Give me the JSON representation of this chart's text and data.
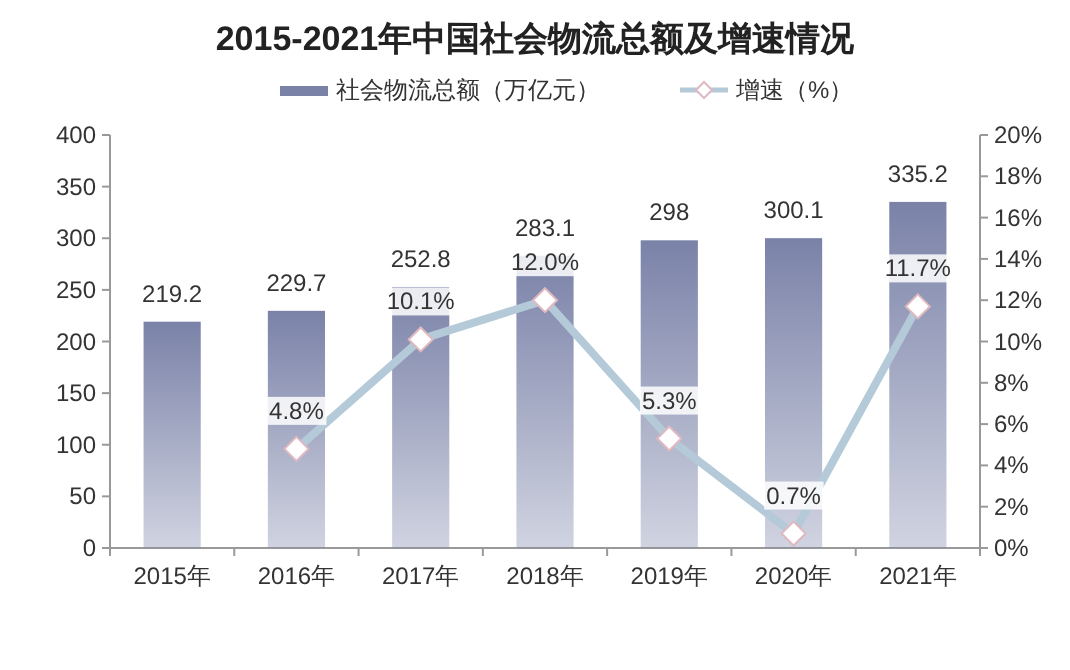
{
  "chart_data": {
    "type": "bar",
    "title": "2015-2021年中国社会物流总额及增速情况",
    "categories": [
      "2015年",
      "2016年",
      "2017年",
      "2018年",
      "2019年",
      "2020年",
      "2021年"
    ],
    "series": [
      {
        "name": "社会物流总额（万亿元）",
        "color": "#7a82a8",
        "values": [
          219.2,
          229.7,
          252.8,
          283.1,
          298,
          300.1,
          335.2
        ],
        "value_labels": [
          "219.2",
          "229.7",
          "252.8",
          "283.1",
          "298",
          "300.1",
          "335.2"
        ]
      },
      {
        "name": "增速（%）",
        "type": "line",
        "axis": "y2",
        "color": "#b4cad8",
        "marker": "diamond",
        "values": [
          null,
          4.8,
          10.1,
          12.0,
          5.3,
          0.7,
          11.7
        ],
        "value_labels": [
          null,
          "4.8%",
          "10.1%",
          "12.0%",
          "5.3%",
          "0.7%",
          "11.7%"
        ]
      }
    ],
    "ylim": [
      0,
      400
    ],
    "yticks": [
      0,
      50,
      100,
      150,
      200,
      250,
      300,
      350,
      400
    ],
    "y2lim": [
      0,
      20
    ],
    "y2ticks": [
      {
        "value": 0,
        "label": "0%"
      },
      {
        "value": 2,
        "label": "2%"
      },
      {
        "value": 4,
        "label": "4%"
      },
      {
        "value": 6,
        "label": "6%"
      },
      {
        "value": 8,
        "label": "8%"
      },
      {
        "value": 10,
        "label": "10%"
      },
      {
        "value": 12,
        "label": "12%"
      },
      {
        "value": 14,
        "label": "14%"
      },
      {
        "value": 16,
        "label": "16%"
      },
      {
        "value": 18,
        "label": "18%"
      },
      {
        "value": 20,
        "label": "20%"
      }
    ],
    "legend": "top",
    "grid": false
  }
}
